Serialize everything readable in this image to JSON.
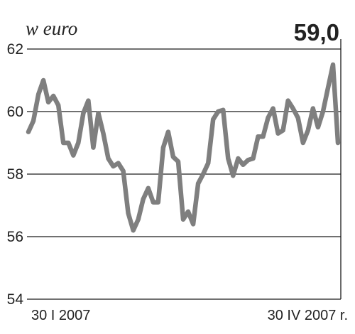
{
  "chart_data": {
    "type": "line",
    "unit_label": "w euro",
    "last_value_label": "59,0",
    "ylim": [
      54,
      62
    ],
    "yticks": [
      {
        "value": 54,
        "label": "54"
      },
      {
        "value": 56,
        "label": "56"
      },
      {
        "value": 58,
        "label": "58"
      },
      {
        "value": 60,
        "label": "60"
      },
      {
        "value": 62,
        "label": "62"
      }
    ],
    "grid": true,
    "x_start_label": "30 I 2007",
    "x_end_label": "30 IV 2007 r.",
    "series": [
      {
        "color": "#7f7f7f",
        "values": [
          59.35,
          59.7,
          60.55,
          61.0,
          60.3,
          60.5,
          60.2,
          59.0,
          59.0,
          58.6,
          59.0,
          59.95,
          60.35,
          58.85,
          59.95,
          59.3,
          58.5,
          58.25,
          58.35,
          58.1,
          56.75,
          56.2,
          56.55,
          57.2,
          57.55,
          57.1,
          57.1,
          58.85,
          59.35,
          58.55,
          58.4,
          56.55,
          56.8,
          56.4,
          57.7,
          58.0,
          58.35,
          59.75,
          60.0,
          60.05,
          58.5,
          57.95,
          58.5,
          58.3,
          58.45,
          58.5,
          59.2,
          59.2,
          59.8,
          60.1,
          59.3,
          59.4,
          60.35,
          60.1,
          59.8,
          59.0,
          59.4,
          60.1,
          59.5,
          60.0,
          60.75,
          61.5,
          59.0
        ]
      }
    ]
  }
}
